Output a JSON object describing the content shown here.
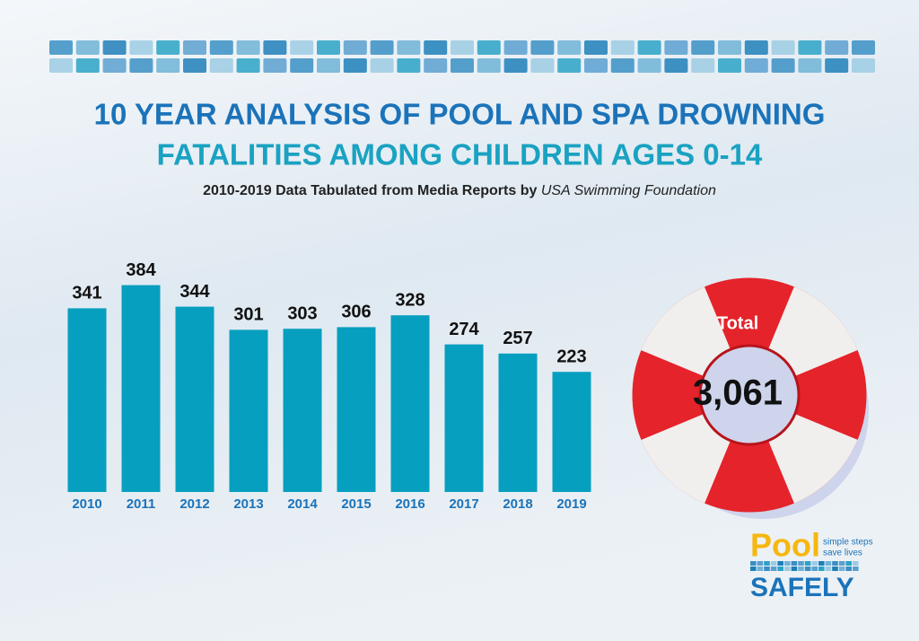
{
  "chart_data": {
    "type": "bar",
    "title_lines": [
      "10 YEAR ANALYSIS OF POOL AND SPA DROWNING",
      "FATALITIES AMONG CHILDREN AGES 0-14"
    ],
    "subtitle": "2010-2019 Data Tabulated from Media Reports by",
    "subtitle_source": "USA Swimming Foundation",
    "categories": [
      "2010",
      "2011",
      "2012",
      "2013",
      "2014",
      "2015",
      "2016",
      "2017",
      "2018",
      "2019"
    ],
    "values": [
      341,
      384,
      344,
      301,
      303,
      306,
      328,
      274,
      257,
      223
    ],
    "color": "#079fbf"
  },
  "total": {
    "label": "Total",
    "value": "3,061"
  },
  "logo": {
    "word1": "Pool",
    "tagline1": "simple steps",
    "tagline2": "save lives",
    "word2": "SAFELY"
  }
}
